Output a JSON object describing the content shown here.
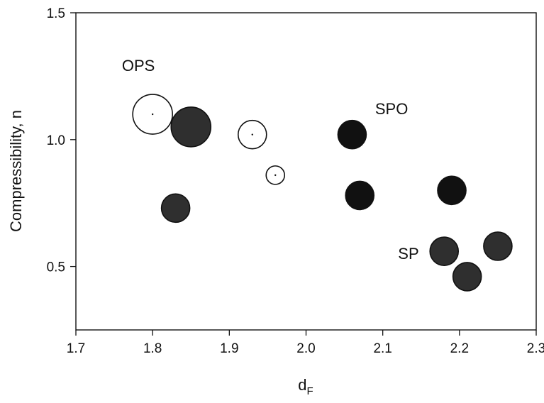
{
  "chart_data": {
    "type": "scatter",
    "title": "",
    "xlabel": "d",
    "xlabel_subscript": "F",
    "ylabel": "Compressibility, n",
    "xlim": [
      1.7,
      2.3
    ],
    "ylim": [
      0.25,
      1.5
    ],
    "xticks": [
      "1.7",
      "1.8",
      "1.9",
      "2.0",
      "2.1",
      "2.2",
      "2.3"
    ],
    "yticks": [
      "0.5",
      "1.0",
      "1.5"
    ],
    "grid": false,
    "legend": "none",
    "series": [
      {
        "style": "open",
        "fill": "#ffffff",
        "stroke": "#111111",
        "points": [
          {
            "x": 1.8,
            "y": 1.1,
            "size": "large"
          },
          {
            "x": 1.93,
            "y": 1.02,
            "size": "medium"
          },
          {
            "x": 1.96,
            "y": 0.86,
            "size": "small"
          }
        ]
      },
      {
        "style": "filled",
        "fill": "#111111",
        "stroke": "#111111",
        "points": [
          {
            "x": 2.06,
            "y": 1.02,
            "size": "medium"
          },
          {
            "x": 2.07,
            "y": 0.78,
            "size": "medium"
          },
          {
            "x": 2.19,
            "y": 0.8,
            "size": "medium"
          }
        ]
      },
      {
        "style": "grey",
        "fill": "#2f2f2f",
        "stroke": "#111111",
        "points": [
          {
            "x": 1.85,
            "y": 1.05,
            "size": "large"
          },
          {
            "x": 1.83,
            "y": 0.73,
            "size": "medium"
          },
          {
            "x": 2.18,
            "y": 0.56,
            "size": "medium"
          },
          {
            "x": 2.21,
            "y": 0.46,
            "size": "medium"
          },
          {
            "x": 2.25,
            "y": 0.58,
            "size": "medium"
          }
        ]
      }
    ],
    "annotations": [
      {
        "text": "OPS",
        "x": 1.76,
        "y": 1.27
      },
      {
        "text": "SPO",
        "x": 2.09,
        "y": 1.1
      },
      {
        "text": "SP",
        "x": 2.12,
        "y": 0.53
      }
    ]
  }
}
